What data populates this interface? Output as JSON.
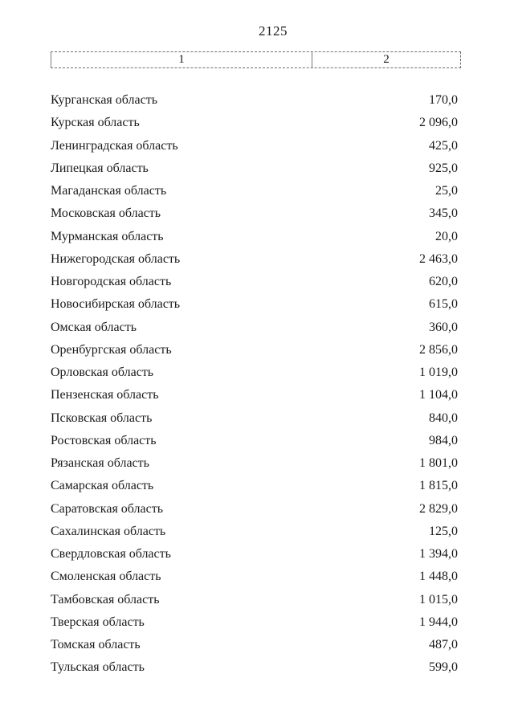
{
  "page": {
    "number": "2125"
  },
  "table": {
    "header": {
      "col1": "1",
      "col2": "2"
    },
    "rows": [
      {
        "label": "Курганская область",
        "value": "170,0"
      },
      {
        "label": "Курская область",
        "value": "2 096,0"
      },
      {
        "label": "Ленинградская область",
        "value": "425,0"
      },
      {
        "label": "Липецкая область",
        "value": "925,0"
      },
      {
        "label": "Магаданская область",
        "value": "25,0"
      },
      {
        "label": "Московская область",
        "value": "345,0"
      },
      {
        "label": "Мурманская область",
        "value": "20,0"
      },
      {
        "label": "Нижегородская область",
        "value": "2 463,0"
      },
      {
        "label": "Новгородская область",
        "value": "620,0"
      },
      {
        "label": "Новосибирская область",
        "value": "615,0"
      },
      {
        "label": "Омская область",
        "value": "360,0"
      },
      {
        "label": "Оренбургская область",
        "value": "2 856,0"
      },
      {
        "label": "Орловская область",
        "value": "1 019,0"
      },
      {
        "label": "Пензенская область",
        "value": "1 104,0"
      },
      {
        "label": "Псковская область",
        "value": "840,0"
      },
      {
        "label": "Ростовская область",
        "value": "984,0"
      },
      {
        "label": "Рязанская область",
        "value": "1 801,0"
      },
      {
        "label": "Самарская область",
        "value": "1 815,0"
      },
      {
        "label": "Саратовская область",
        "value": "2 829,0"
      },
      {
        "label": "Сахалинская область",
        "value": "125,0"
      },
      {
        "label": "Свердловская область",
        "value": "1 394,0"
      },
      {
        "label": "Смоленская область",
        "value": "1 448,0"
      },
      {
        "label": "Тамбовская область",
        "value": "1 015,0"
      },
      {
        "label": "Тверская область",
        "value": "1 944,0"
      },
      {
        "label": "Томская область",
        "value": "487,0"
      },
      {
        "label": "Тульская область",
        "value": "599,0"
      }
    ]
  }
}
